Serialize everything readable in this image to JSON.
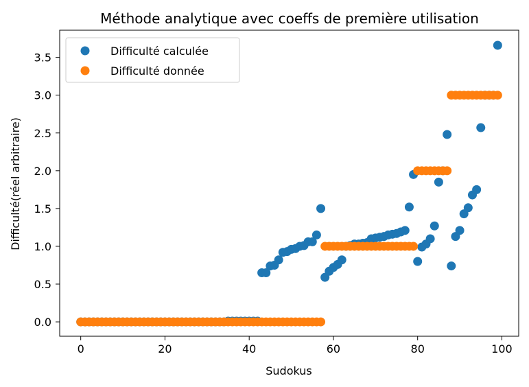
{
  "chart_data": {
    "type": "scatter",
    "title": "Méthode analytique avec coeffs de première utilisation",
    "xlabel": "Sudokus",
    "ylabel": "Difficulté(réel arbitraire)",
    "xlim": [
      -5,
      104
    ],
    "ylim": [
      -0.19,
      3.86
    ],
    "xticks": [
      0,
      20,
      40,
      60,
      80,
      100
    ],
    "yticks": [
      0.0,
      0.5,
      1.0,
      1.5,
      2.0,
      2.5,
      3.0,
      3.5
    ],
    "xtick_labels": [
      "0",
      "20",
      "40",
      "60",
      "80",
      "100"
    ],
    "ytick_labels": [
      "0.0",
      "0.5",
      "1.0",
      "1.5",
      "2.0",
      "2.5",
      "3.0",
      "3.5"
    ],
    "grid": false,
    "legend_position": "upper-left",
    "series": [
      {
        "name": "Difficulté calculée",
        "color": "#1f77b4",
        "x": [
          0,
          1,
          2,
          3,
          4,
          5,
          6,
          7,
          8,
          9,
          10,
          11,
          12,
          13,
          14,
          15,
          16,
          17,
          18,
          19,
          20,
          21,
          22,
          23,
          24,
          25,
          26,
          27,
          28,
          29,
          30,
          31,
          32,
          33,
          34,
          35,
          36,
          37,
          38,
          39,
          40,
          41,
          42,
          43,
          44,
          45,
          46,
          47,
          48,
          49,
          50,
          51,
          52,
          53,
          54,
          55,
          56,
          57,
          58,
          59,
          60,
          61,
          62,
          63,
          64,
          65,
          66,
          67,
          68,
          69,
          70,
          71,
          72,
          73,
          74,
          75,
          76,
          77,
          78,
          79,
          80,
          81,
          82,
          83,
          84,
          85,
          86,
          87,
          88,
          89,
          90,
          91,
          92,
          93,
          94,
          95,
          96,
          97,
          98,
          99
        ],
        "y": [
          0,
          0,
          0,
          0,
          0,
          0,
          0,
          0,
          0,
          0,
          0,
          0,
          0,
          0,
          0,
          0,
          0,
          0,
          0,
          0,
          0,
          0,
          0,
          0,
          0,
          0,
          0,
          0,
          0,
          0,
          0,
          0,
          0,
          0,
          0,
          0.01,
          0.01,
          0.01,
          0.01,
          0.01,
          0.01,
          0.01,
          0.01,
          0.65,
          0.65,
          0.74,
          0.75,
          0.82,
          0.92,
          0.93,
          0.96,
          0.97,
          1.0,
          1.01,
          1.06,
          1.06,
          1.15,
          1.5,
          0.59,
          0.67,
          0.72,
          0.76,
          0.82,
          1.0,
          1.01,
          1.03,
          1.03,
          1.04,
          1.05,
          1.1,
          1.11,
          1.12,
          1.13,
          1.15,
          1.16,
          1.17,
          1.19,
          1.21,
          1.52,
          1.95,
          0.8,
          0.99,
          1.03,
          1.1,
          1.27,
          1.85,
          2.0,
          2.48,
          0.74,
          1.13,
          1.21,
          1.43,
          1.51,
          1.68,
          1.75,
          2.57,
          3.0,
          3.0,
          3.0,
          3.66
        ]
      },
      {
        "name": "Difficulté donnée",
        "color": "#ff7f0e",
        "x": [
          0,
          1,
          2,
          3,
          4,
          5,
          6,
          7,
          8,
          9,
          10,
          11,
          12,
          13,
          14,
          15,
          16,
          17,
          18,
          19,
          20,
          21,
          22,
          23,
          24,
          25,
          26,
          27,
          28,
          29,
          30,
          31,
          32,
          33,
          34,
          35,
          36,
          37,
          38,
          39,
          40,
          41,
          42,
          43,
          44,
          45,
          46,
          47,
          48,
          49,
          50,
          51,
          52,
          53,
          54,
          55,
          56,
          57,
          58,
          59,
          60,
          61,
          62,
          63,
          64,
          65,
          66,
          67,
          68,
          69,
          70,
          71,
          72,
          73,
          74,
          75,
          76,
          77,
          78,
          79,
          80,
          81,
          82,
          83,
          84,
          85,
          86,
          87,
          88,
          89,
          90,
          91,
          92,
          93,
          94,
          95,
          96,
          97,
          98,
          99
        ],
        "y": [
          0,
          0,
          0,
          0,
          0,
          0,
          0,
          0,
          0,
          0,
          0,
          0,
          0,
          0,
          0,
          0,
          0,
          0,
          0,
          0,
          0,
          0,
          0,
          0,
          0,
          0,
          0,
          0,
          0,
          0,
          0,
          0,
          0,
          0,
          0,
          0,
          0,
          0,
          0,
          0,
          0,
          0,
          0,
          0,
          0,
          0,
          0,
          0,
          0,
          0,
          0,
          0,
          0,
          0,
          0,
          0,
          0,
          0,
          1,
          1,
          1,
          1,
          1,
          1,
          1,
          1,
          1,
          1,
          1,
          1,
          1,
          1,
          1,
          1,
          1,
          1,
          1,
          1,
          1,
          1,
          2,
          2,
          2,
          2,
          2,
          2,
          2,
          2,
          3,
          3,
          3,
          3,
          3,
          3,
          3,
          3,
          3,
          3,
          3,
          3
        ]
      }
    ]
  }
}
